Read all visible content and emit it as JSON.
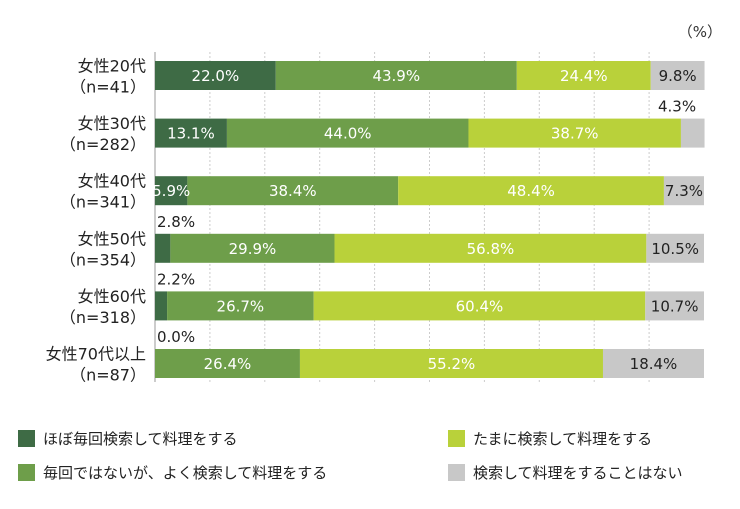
{
  "chart_data": {
    "type": "bar",
    "orientation": "horizontal",
    "stacked": true,
    "unit": "（%）",
    "xlim": [
      0,
      100
    ],
    "grid": true,
    "legend_position": "bottom",
    "categories": [
      {
        "line1": "女性20代",
        "line2": "（n=41）"
      },
      {
        "line1": "女性30代",
        "line2": "（n=282）"
      },
      {
        "line1": "女性40代",
        "line2": "（n=341）"
      },
      {
        "line1": "女性50代",
        "line2": "（n=354）"
      },
      {
        "line1": "女性60代",
        "line2": "（n=318）"
      },
      {
        "line1": "女性70代以上",
        "line2": "（n=87）"
      }
    ],
    "series": [
      {
        "name": "ほぼ毎回検索して料理をする",
        "color": "#3e6b45",
        "label_color": "#ffffff",
        "values": [
          22.0,
          13.1,
          5.9,
          2.8,
          2.2,
          0.0
        ]
      },
      {
        "name": "毎回ではないが、よく検索して料理をする",
        "color": "#6e9e4a",
        "label_color": "#ffffff",
        "values": [
          43.9,
          44.0,
          38.4,
          29.9,
          26.7,
          26.4
        ]
      },
      {
        "name": "たまに検索して料理をする",
        "color": "#b9d13a",
        "label_color": "#ffffff",
        "values": [
          24.4,
          38.7,
          48.4,
          56.8,
          60.4,
          55.2
        ]
      },
      {
        "name": "検索して料理をすることはない",
        "color": "#c8c8c8",
        "label_color": "#222222",
        "values": [
          9.8,
          4.3,
          7.3,
          10.5,
          10.7,
          18.4
        ]
      }
    ],
    "labels": [
      [
        "22.0%",
        "43.9%",
        "24.4%",
        "9.8%"
      ],
      [
        "13.1%",
        "44.0%",
        "38.7%",
        "4.3%"
      ],
      [
        "5.9%",
        "38.4%",
        "48.4%",
        "7.3%"
      ],
      [
        "2.8%",
        "29.9%",
        "56.8%",
        "10.5%"
      ],
      [
        "2.2%",
        "26.7%",
        "60.4%",
        "10.7%"
      ],
      [
        "0.0%",
        "26.4%",
        "55.2%",
        "18.4%"
      ]
    ]
  }
}
